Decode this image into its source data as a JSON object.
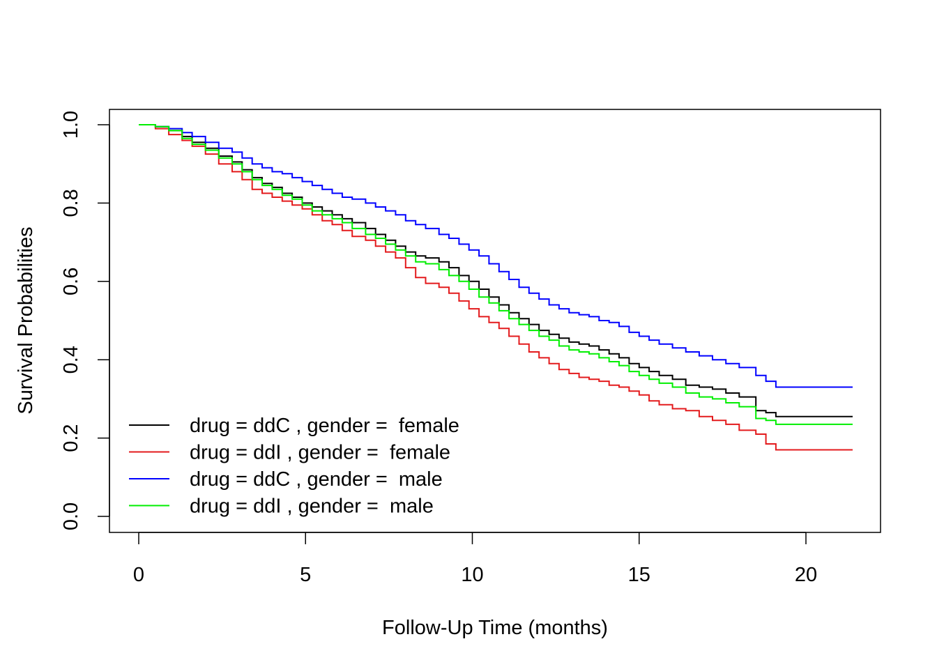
{
  "chart_data": {
    "type": "line",
    "step": true,
    "title": "",
    "xlabel": "Follow-Up Time (months)",
    "ylabel": "Survival Probabilities",
    "xlim": [
      0,
      21.4
    ],
    "ylim": [
      0,
      1
    ],
    "xticks": [
      0,
      5,
      10,
      15,
      20
    ],
    "xtick_labels": [
      "0",
      "5",
      "10",
      "15",
      "20"
    ],
    "yticks": [
      0,
      0.2,
      0.4,
      0.6,
      0.8,
      1.0
    ],
    "ytick_labels": [
      "0.0",
      "0.2",
      "0.4",
      "0.6",
      "0.8",
      "1.0"
    ],
    "grid": false,
    "legend_position": "bottom-left",
    "series": [
      {
        "name": "drug = ddC , gender =  female",
        "color": "#000000",
        "x": [
          0,
          0.5,
          0.9,
          1.3,
          1.6,
          2.0,
          2.4,
          2.8,
          3.1,
          3.4,
          3.7,
          4.0,
          4.3,
          4.6,
          4.9,
          5.2,
          5.5,
          5.8,
          6.1,
          6.4,
          6.8,
          7.1,
          7.4,
          7.7,
          8.0,
          8.3,
          8.6,
          9.0,
          9.3,
          9.6,
          9.9,
          10.2,
          10.5,
          10.8,
          11.1,
          11.4,
          11.7,
          12.0,
          12.3,
          12.6,
          12.9,
          13.2,
          13.5,
          13.8,
          14.1,
          14.4,
          14.7,
          15.0,
          15.3,
          15.6,
          16.0,
          16.4,
          16.8,
          17.2,
          17.6,
          18.0,
          18.5,
          18.8,
          19.1,
          21.4
        ],
        "y": [
          1.0,
          0.995,
          0.985,
          0.97,
          0.955,
          0.94,
          0.92,
          0.905,
          0.885,
          0.865,
          0.85,
          0.84,
          0.825,
          0.815,
          0.8,
          0.79,
          0.78,
          0.77,
          0.76,
          0.75,
          0.735,
          0.72,
          0.705,
          0.69,
          0.675,
          0.665,
          0.66,
          0.65,
          0.635,
          0.615,
          0.6,
          0.58,
          0.56,
          0.54,
          0.52,
          0.505,
          0.49,
          0.475,
          0.465,
          0.455,
          0.445,
          0.44,
          0.435,
          0.425,
          0.415,
          0.405,
          0.39,
          0.38,
          0.37,
          0.36,
          0.35,
          0.335,
          0.33,
          0.325,
          0.315,
          0.305,
          0.27,
          0.265,
          0.255,
          0.255
        ]
      },
      {
        "name": "drug = ddI , gender =  female",
        "color": "#e31a1c",
        "x": [
          0,
          0.5,
          0.9,
          1.3,
          1.6,
          2.0,
          2.4,
          2.8,
          3.1,
          3.4,
          3.7,
          4.0,
          4.3,
          4.6,
          4.9,
          5.2,
          5.5,
          5.8,
          6.1,
          6.4,
          6.8,
          7.1,
          7.4,
          7.7,
          8.0,
          8.3,
          8.6,
          9.0,
          9.3,
          9.6,
          9.9,
          10.2,
          10.5,
          10.8,
          11.1,
          11.4,
          11.7,
          12.0,
          12.3,
          12.6,
          12.9,
          13.2,
          13.5,
          13.8,
          14.1,
          14.4,
          14.7,
          15.0,
          15.3,
          15.6,
          16.0,
          16.4,
          16.8,
          17.2,
          17.6,
          18.0,
          18.5,
          18.8,
          19.1,
          21.4
        ],
        "y": [
          1.0,
          0.99,
          0.975,
          0.96,
          0.945,
          0.925,
          0.9,
          0.88,
          0.86,
          0.835,
          0.825,
          0.815,
          0.805,
          0.795,
          0.785,
          0.77,
          0.755,
          0.745,
          0.73,
          0.715,
          0.705,
          0.69,
          0.675,
          0.66,
          0.635,
          0.61,
          0.595,
          0.585,
          0.57,
          0.55,
          0.53,
          0.51,
          0.495,
          0.48,
          0.46,
          0.44,
          0.42,
          0.405,
          0.39,
          0.375,
          0.365,
          0.355,
          0.35,
          0.345,
          0.335,
          0.33,
          0.32,
          0.31,
          0.295,
          0.285,
          0.275,
          0.27,
          0.255,
          0.245,
          0.235,
          0.22,
          0.21,
          0.185,
          0.17,
          0.17
        ]
      },
      {
        "name": "drug = ddC , gender =  male",
        "color": "#0000ff",
        "x": [
          0,
          0.5,
          0.9,
          1.3,
          1.6,
          2.0,
          2.4,
          2.8,
          3.1,
          3.4,
          3.7,
          4.0,
          4.3,
          4.6,
          4.9,
          5.2,
          5.5,
          5.8,
          6.1,
          6.4,
          6.8,
          7.1,
          7.4,
          7.7,
          8.0,
          8.3,
          8.6,
          9.0,
          9.3,
          9.6,
          9.9,
          10.2,
          10.5,
          10.8,
          11.1,
          11.4,
          11.7,
          12.0,
          12.3,
          12.6,
          12.9,
          13.2,
          13.5,
          13.8,
          14.1,
          14.4,
          14.7,
          15.0,
          15.3,
          15.6,
          16.0,
          16.4,
          16.8,
          17.2,
          17.6,
          18.0,
          18.5,
          18.8,
          19.1,
          21.4
        ],
        "y": [
          1.0,
          0.995,
          0.99,
          0.98,
          0.97,
          0.955,
          0.94,
          0.93,
          0.915,
          0.9,
          0.89,
          0.88,
          0.875,
          0.865,
          0.855,
          0.845,
          0.835,
          0.825,
          0.815,
          0.81,
          0.8,
          0.79,
          0.78,
          0.77,
          0.755,
          0.745,
          0.735,
          0.72,
          0.71,
          0.695,
          0.68,
          0.665,
          0.645,
          0.625,
          0.605,
          0.585,
          0.57,
          0.555,
          0.54,
          0.53,
          0.52,
          0.515,
          0.51,
          0.5,
          0.495,
          0.485,
          0.47,
          0.46,
          0.45,
          0.44,
          0.43,
          0.42,
          0.41,
          0.4,
          0.39,
          0.38,
          0.36,
          0.345,
          0.33,
          0.33
        ]
      },
      {
        "name": "drug = ddI , gender =  male",
        "color": "#00ee00",
        "x": [
          0,
          0.5,
          0.9,
          1.3,
          1.6,
          2.0,
          2.4,
          2.8,
          3.1,
          3.4,
          3.7,
          4.0,
          4.3,
          4.6,
          4.9,
          5.2,
          5.5,
          5.8,
          6.1,
          6.4,
          6.8,
          7.1,
          7.4,
          7.7,
          8.0,
          8.3,
          8.6,
          9.0,
          9.3,
          9.6,
          9.9,
          10.2,
          10.5,
          10.8,
          11.1,
          11.4,
          11.7,
          12.0,
          12.3,
          12.6,
          12.9,
          13.2,
          13.5,
          13.8,
          14.1,
          14.4,
          14.7,
          15.0,
          15.3,
          15.6,
          16.0,
          16.4,
          16.8,
          17.2,
          17.6,
          18.0,
          18.5,
          18.8,
          19.1,
          21.4
        ],
        "y": [
          1.0,
          0.995,
          0.985,
          0.965,
          0.95,
          0.935,
          0.915,
          0.9,
          0.88,
          0.86,
          0.845,
          0.835,
          0.82,
          0.81,
          0.795,
          0.78,
          0.77,
          0.76,
          0.75,
          0.735,
          0.72,
          0.71,
          0.695,
          0.68,
          0.665,
          0.65,
          0.645,
          0.63,
          0.615,
          0.6,
          0.58,
          0.56,
          0.545,
          0.525,
          0.505,
          0.49,
          0.475,
          0.46,
          0.45,
          0.435,
          0.425,
          0.42,
          0.415,
          0.405,
          0.395,
          0.385,
          0.37,
          0.36,
          0.35,
          0.34,
          0.33,
          0.315,
          0.305,
          0.3,
          0.29,
          0.28,
          0.25,
          0.245,
          0.235,
          0.235
        ]
      }
    ]
  }
}
